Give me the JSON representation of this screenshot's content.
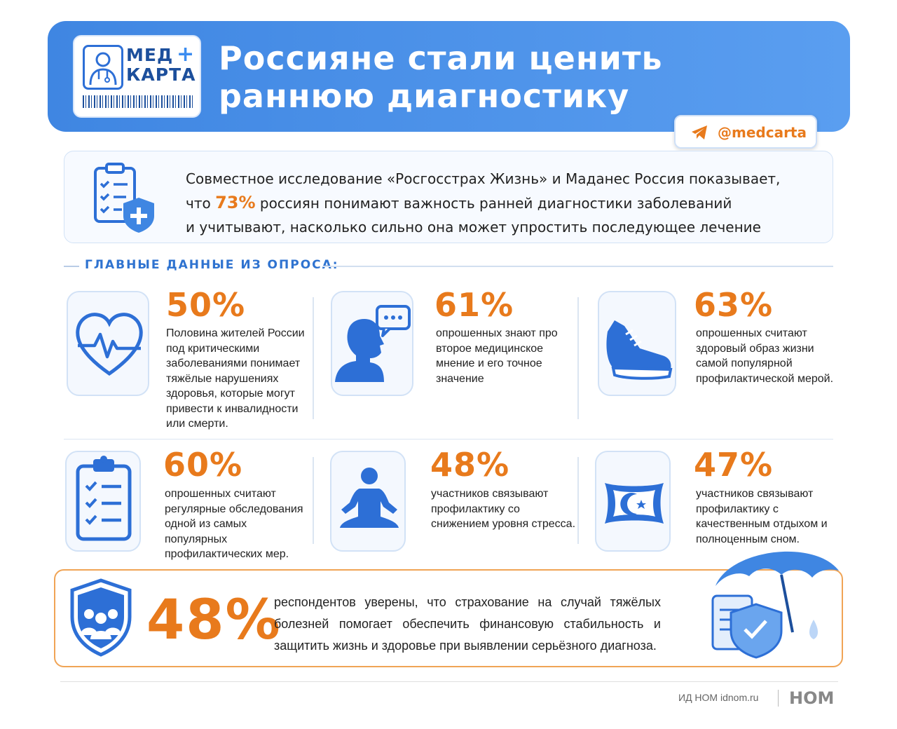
{
  "header": {
    "logo_line1": "МЕД",
    "logo_line2": "КАРТА",
    "logo_plus": "+",
    "title_line1": "Россияне стали ценить",
    "title_line2": "раннюю диагностику",
    "channel": "@medcarta"
  },
  "intro": {
    "line1": "Совместное исследование «Росгосстрах Жизнь» и Маданес Россия показывает,",
    "line2_pre": "что",
    "line2_pct": "73%",
    "line2_post": "россиян понимают важность ранней диагностики заболеваний",
    "line3": "и учитывают, насколько сильно она может упростить последующее лечение"
  },
  "section_label": "ГЛАВНЫЕ ДАННЫЕ ИЗ ОПРОСА:",
  "stats": [
    {
      "pct": "50%",
      "icon": "heart-pulse-icon",
      "text": "Половина жителей России под критическими заболеваниями понимает тяжёлые нарушениях здоровья, которые могут привести к инвалидности или смерти."
    },
    {
      "pct": "61%",
      "icon": "person-speech-icon",
      "text": "опрошенных знают про второе медицинское мнение и его точное значение"
    },
    {
      "pct": "63%",
      "icon": "sneaker-icon",
      "text": "опрошенных считают здоровый образ жизни самой популярной профилактической мерой."
    },
    {
      "pct": "60%",
      "icon": "clipboard-checklist-icon",
      "text": "опрошенных считают регулярные обследования одной из самых популярных профилактических мер."
    },
    {
      "pct": "48%",
      "icon": "meditation-icon",
      "text": "участников связывают профилактику со снижением уровня стресса."
    },
    {
      "pct": "47%",
      "icon": "pillow-moon-icon",
      "text": "участников связывают профилактику с качественным отдыхом и полноценным сном."
    }
  ],
  "bottom": {
    "pct": "48%",
    "text": "респондентов уверены, что страхование на случай тяжёлых болезней помогает обеспечить финансовую стабильность и защитить жизнь и здоровье при выявлении серьёзного диагноза."
  },
  "footer": {
    "source": "ИД НОМ idnom.ru",
    "logo": "НОМ"
  },
  "colors": {
    "accent_blue": "#3f86e2",
    "accent_orange": "#e87a1c"
  }
}
